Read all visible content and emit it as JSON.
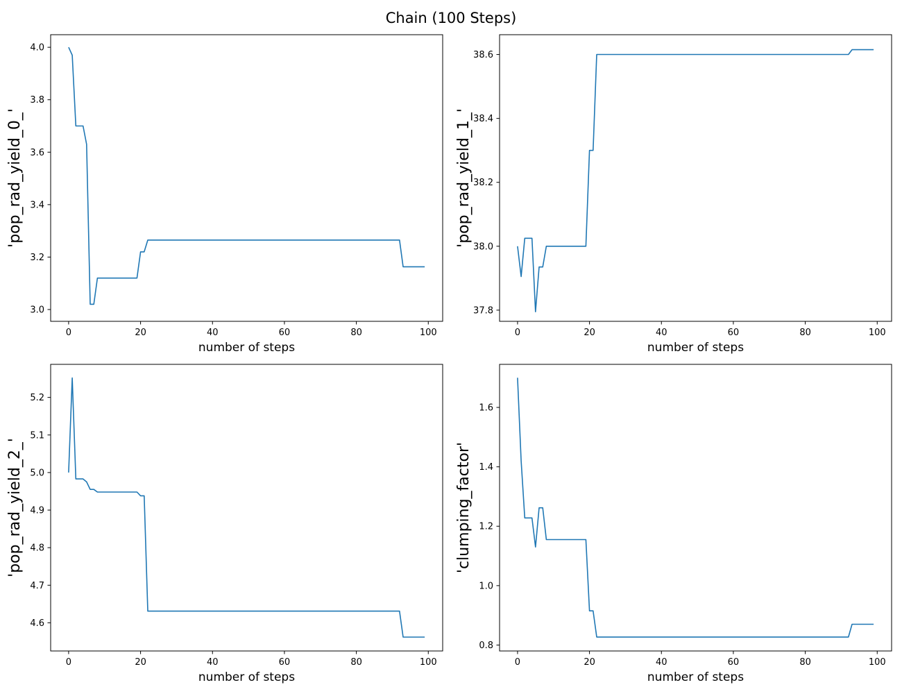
{
  "figure": {
    "suptitle": "Chain (100 Steps)",
    "line_color": "#1f77b4"
  },
  "chart_data": [
    {
      "type": "line",
      "xlabel": "number of steps",
      "ylabel": "'pop_rad_yield_0_'",
      "xlim": [
        -5,
        104
      ],
      "ylim": [
        2.955,
        4.048
      ],
      "xticks": [
        0,
        20,
        40,
        60,
        80,
        100
      ],
      "yticks": [
        3.0,
        3.2,
        3.4,
        3.6,
        3.8,
        4.0
      ],
      "ytick_labels": [
        "3.0",
        "3.2",
        "3.4",
        "3.6",
        "3.8",
        "4.0"
      ],
      "grid": false,
      "series": [
        {
          "points": [
            [
              0,
              4.0
            ],
            [
              1,
              3.97
            ],
            [
              2,
              3.7
            ],
            [
              4,
              3.7
            ],
            [
              5,
              3.63
            ],
            [
              6,
              3.02
            ],
            [
              7,
              3.02
            ],
            [
              8,
              3.12
            ],
            [
              19,
              3.12
            ],
            [
              20,
              3.22
            ],
            [
              21,
              3.22
            ],
            [
              22,
              3.265
            ],
            [
              92,
              3.265
            ],
            [
              93,
              3.163
            ],
            [
              99,
              3.163
            ]
          ]
        }
      ]
    },
    {
      "type": "line",
      "xlabel": "number of steps",
      "ylabel": "'pop_rad_yield_1_'",
      "xlim": [
        -5,
        104
      ],
      "ylim": [
        37.765,
        38.662
      ],
      "xticks": [
        0,
        20,
        40,
        60,
        80,
        100
      ],
      "yticks": [
        37.8,
        38.0,
        38.2,
        38.4,
        38.6
      ],
      "ytick_labels": [
        "37.8",
        "38.0",
        "38.2",
        "38.4",
        "38.6"
      ],
      "grid": false,
      "series": [
        {
          "points": [
            [
              0,
              38.0
            ],
            [
              1,
              37.905
            ],
            [
              2,
              38.025
            ],
            [
              4,
              38.025
            ],
            [
              5,
              37.795
            ],
            [
              6,
              37.935
            ],
            [
              7,
              37.935
            ],
            [
              8,
              38.0
            ],
            [
              19,
              38.0
            ],
            [
              20,
              38.3
            ],
            [
              21,
              38.3
            ],
            [
              22,
              38.6
            ],
            [
              92,
              38.6
            ],
            [
              93,
              38.615
            ],
            [
              99,
              38.615
            ]
          ]
        }
      ]
    },
    {
      "type": "line",
      "xlabel": "number of steps",
      "ylabel": "'pop_rad_yield_2_'",
      "xlim": [
        -5,
        104
      ],
      "ylim": [
        4.525,
        5.288
      ],
      "xticks": [
        0,
        20,
        40,
        60,
        80,
        100
      ],
      "yticks": [
        4.6,
        4.7,
        4.8,
        4.9,
        5.0,
        5.1,
        5.2
      ],
      "ytick_labels": [
        "4.6",
        "4.7",
        "4.8",
        "4.9",
        "5.0",
        "5.1",
        "5.2"
      ],
      "grid": false,
      "series": [
        {
          "points": [
            [
              0,
              5.0
            ],
            [
              1,
              5.252
            ],
            [
              2,
              4.983
            ],
            [
              4,
              4.983
            ],
            [
              5,
              4.975
            ],
            [
              6,
              4.955
            ],
            [
              7,
              4.955
            ],
            [
              8,
              4.948
            ],
            [
              19,
              4.948
            ],
            [
              20,
              4.938
            ],
            [
              21,
              4.938
            ],
            [
              22,
              4.631
            ],
            [
              92,
              4.631
            ],
            [
              93,
              4.562
            ],
            [
              99,
              4.562
            ]
          ]
        }
      ]
    },
    {
      "type": "line",
      "xlabel": "number of steps",
      "ylabel": "'clumping_factor'",
      "xlim": [
        -5,
        104
      ],
      "ylim": [
        0.78,
        1.745
      ],
      "xticks": [
        0,
        20,
        40,
        60,
        80,
        100
      ],
      "yticks": [
        0.8,
        1.0,
        1.2,
        1.4,
        1.6
      ],
      "ytick_labels": [
        "0.8",
        "1.0",
        "1.2",
        "1.4",
        "1.6"
      ],
      "grid": false,
      "series": [
        {
          "points": [
            [
              0,
              1.7
            ],
            [
              1,
              1.42
            ],
            [
              2,
              1.228
            ],
            [
              4,
              1.228
            ],
            [
              5,
              1.13
            ],
            [
              6,
              1.262
            ],
            [
              7,
              1.262
            ],
            [
              8,
              1.155
            ],
            [
              19,
              1.155
            ],
            [
              20,
              0.915
            ],
            [
              21,
              0.915
            ],
            [
              22,
              0.827
            ],
            [
              92,
              0.827
            ],
            [
              93,
              0.87
            ],
            [
              99,
              0.87
            ]
          ]
        }
      ]
    }
  ]
}
